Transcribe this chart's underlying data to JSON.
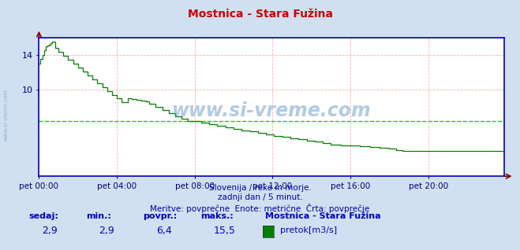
{
  "title": "Mostnica - Stara Fužina",
  "bg_color": "#d0e0f0",
  "plot_bg_color": "#ffffff",
  "line_color": "#008000",
  "avg_line_color": "#00dd00",
  "border_color": "#0000bb",
  "grid_color": "#ffb0b0",
  "axis_label_color": "#000080",
  "text_color": "#0000aa",
  "ylabel_min": 0,
  "ylabel_max": 16,
  "yticks": [
    10,
    14
  ],
  "avg_value": 6.4,
  "xlim_start": 0,
  "xlim_end": 287,
  "xtick_positions": [
    0,
    48,
    96,
    144,
    192,
    240
  ],
  "xtick_labels": [
    "pet 00:00",
    "pet 04:00",
    "pet 08:00",
    "pet 12:00",
    "pet 16:00",
    "pet 20:00"
  ],
  "subtitle1": "Slovenija / reke in morje.",
  "subtitle2": "zadnji dan / 5 minut.",
  "subtitle3": "Meritve: povprečne  Enote: metrične  Črta: povprečje",
  "footer_labels": [
    "sedaj:",
    "min.:",
    "povpr.:",
    "maks.:"
  ],
  "footer_values": [
    "2,9",
    "2,9",
    "6,4",
    "15,5"
  ],
  "legend_station": "Mostnica - Stara Fužina",
  "legend_label": "pretok[m3/s]",
  "watermark": "www.si-vreme.com"
}
